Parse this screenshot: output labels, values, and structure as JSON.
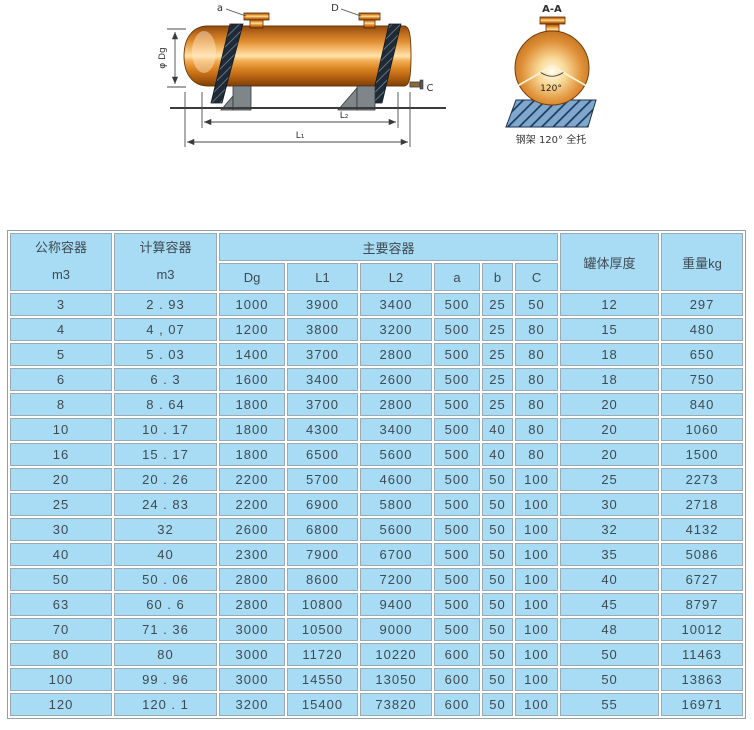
{
  "diagram": {
    "labels": {
      "nozzle_a": "a",
      "nozzle_d": "D",
      "outlet_c": "C",
      "diameter": "φ Dg",
      "l1": "L₁",
      "l2": "L₂",
      "section_title": "A-A",
      "angle": "120°",
      "caption": "钢架 120° 全托"
    },
    "colors": {
      "tank_copper": "#d9822b",
      "tank_highlight": "#ffe2ac",
      "strap_dark": "#1e2a36",
      "saddle_gray": "#7e8689",
      "section_saddle_blue": "#5e8cb8",
      "section_hatch_navy": "#1c3a60",
      "line": "#3a3a3a"
    }
  },
  "table": {
    "headers": {
      "nominal": {
        "line1": "公称容器",
        "line2": "m3"
      },
      "calculated": {
        "line1": "计算容器",
        "line2": "m3"
      },
      "main_group": "主要容器",
      "sub": [
        "Dg",
        "L1",
        "L2",
        "a",
        "b",
        "C"
      ],
      "thickness": "罐体厚度",
      "weight": "重量kg"
    },
    "rows": [
      [
        "3",
        "2 . 93",
        "1000",
        "3900",
        "3400",
        "500",
        "25",
        "50",
        "12",
        "297"
      ],
      [
        "4",
        "4 , 07",
        "1200",
        "3800",
        "3200",
        "500",
        "25",
        "80",
        "15",
        "480"
      ],
      [
        "5",
        "5 . 03",
        "1400",
        "3700",
        "2800",
        "500",
        "25",
        "80",
        "18",
        "650"
      ],
      [
        "6",
        "6 . 3",
        "1600",
        "3400",
        "2600",
        "500",
        "25",
        "80",
        "18",
        "750"
      ],
      [
        "8",
        "8 . 64",
        "1800",
        "3700",
        "2800",
        "500",
        "25",
        "80",
        "20",
        "840"
      ],
      [
        "10",
        "10 . 17",
        "1800",
        "4300",
        "3400",
        "500",
        "40",
        "80",
        "20",
        "1060"
      ],
      [
        "16",
        "15 . 17",
        "1800",
        "6500",
        "5600",
        "500",
        "40",
        "80",
        "20",
        "1500"
      ],
      [
        "20",
        "20 . 26",
        "2200",
        "5700",
        "4600",
        "500",
        "50",
        "100",
        "25",
        "2273"
      ],
      [
        "25",
        "24 . 83",
        "2200",
        "6900",
        "5800",
        "500",
        "50",
        "100",
        "30",
        "2718"
      ],
      [
        "30",
        "32",
        "2600",
        "6800",
        "5600",
        "500",
        "50",
        "100",
        "32",
        "4132"
      ],
      [
        "40",
        "40",
        "2300",
        "7900",
        "6700",
        "500",
        "50",
        "100",
        "35",
        "5086"
      ],
      [
        "50",
        "50 . 06",
        "2800",
        "8600",
        "7200",
        "500",
        "50",
        "100",
        "40",
        "6727"
      ],
      [
        "63",
        "60 . 6",
        "2800",
        "10800",
        "9400",
        "500",
        "50",
        "100",
        "45",
        "8797"
      ],
      [
        "70",
        "71 . 36",
        "3000",
        "10500",
        "9000",
        "500",
        "50",
        "100",
        "48",
        "10012"
      ],
      [
        "80",
        "80",
        "3000",
        "11720",
        "10220",
        "600",
        "50",
        "100",
        "50",
        "11463"
      ],
      [
        "100",
        "99 . 96",
        "3000",
        "14550",
        "13050",
        "600",
        "50",
        "100",
        "50",
        "13863"
      ],
      [
        "120",
        "120 . 1",
        "3200",
        "15400",
        "73820",
        "600",
        "50",
        "100",
        "55",
        "16971"
      ]
    ]
  }
}
